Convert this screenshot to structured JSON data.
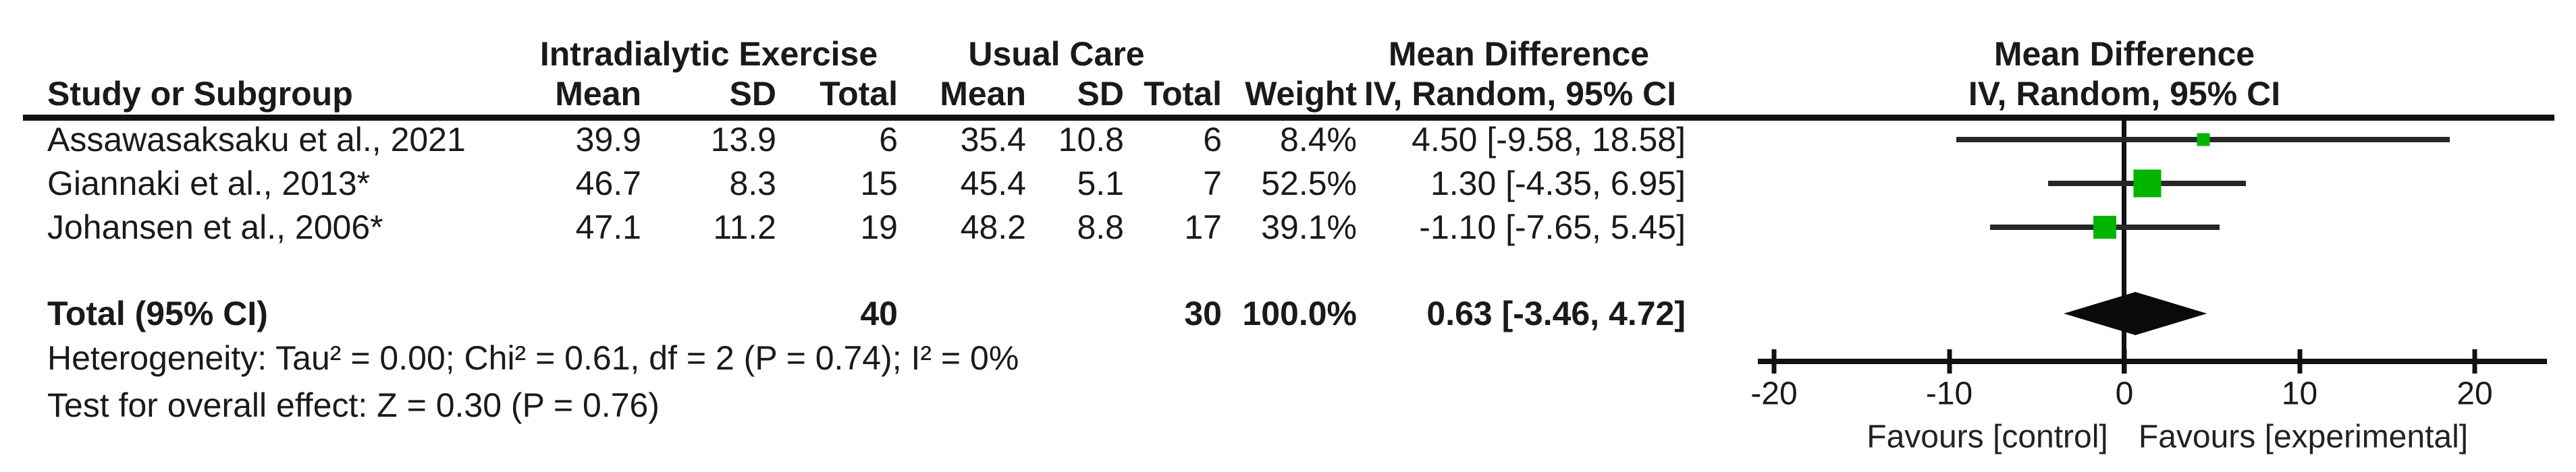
{
  "figure": {
    "colors": {
      "marker_green": "#00b400",
      "line": "#262626",
      "axis": "#111111",
      "text": "#1a1a1a"
    },
    "table": {
      "study_col_header": "Study or Subgroup",
      "group1_header": "Intradialytic Exercise",
      "group2_header": "Usual Care",
      "sub_headers": [
        "Mean",
        "SD",
        "Total",
        "Mean",
        "SD",
        "Total",
        "Weight"
      ],
      "effect_header_line1": "Mean Difference",
      "effect_header_line2": "IV, Random, 95% CI"
    },
    "plot": {
      "header_line1": "Mean Difference",
      "header_line2": "IV, Random, 95% CI",
      "axis_ticks": [
        "-20",
        "-10",
        "0",
        "10",
        "20"
      ],
      "favours_left": "Favours [control]",
      "favours_right": "Favours [experimental]"
    },
    "rows": [
      {
        "study": "Assawasaksaku et al., 2021",
        "mean1": "39.9",
        "sd1": "13.9",
        "total1": "6",
        "mean2": "35.4",
        "sd2": "10.8",
        "total2": "6",
        "weight": "8.4%",
        "ci": "4.50 [-9.58, 18.58]",
        "md": 4.5,
        "lo": -9.58,
        "hi": 18.58,
        "weight_pct": 8.4
      },
      {
        "study": "Giannaki et al., 2013*",
        "mean1": "46.7",
        "sd1": "8.3",
        "total1": "15",
        "mean2": "45.4",
        "sd2": "5.1",
        "total2": "7",
        "weight": "52.5%",
        "ci": "1.30 [-4.35, 6.95]",
        "md": 1.3,
        "lo": -4.35,
        "hi": 6.95,
        "weight_pct": 52.5
      },
      {
        "study": "Johansen et al., 2006*",
        "mean1": "47.1",
        "sd1": "11.2",
        "total1": "19",
        "mean2": "48.2",
        "sd2": "8.8",
        "total2": "17",
        "weight": "39.1%",
        "ci": "-1.10 [-7.65, 5.45]",
        "md": -1.1,
        "lo": -7.65,
        "hi": 5.45,
        "weight_pct": 39.1
      }
    ],
    "total": {
      "label": "Total (95% CI)",
      "total1": "40",
      "total2": "30",
      "weight": "100.0%",
      "ci": "0.63 [-3.46, 4.72]",
      "md": 0.63,
      "lo": -3.46,
      "hi": 4.72
    },
    "footnotes": {
      "heterogeneity": "Heterogeneity: Tau² = 0.00; Chi² = 0.61, df = 2 (P = 0.74); I² = 0%",
      "overall_effect": "Test for overall effect: Z = 0.30 (P = 0.76)"
    }
  },
  "chart_data": {
    "type": "scatter",
    "subtype": "forest_plot_mean_difference",
    "title": "Mean Difference — IV, Random, 95% CI",
    "xlim": [
      -20,
      20
    ],
    "x_ticks": [
      -20,
      -10,
      0,
      10,
      20
    ],
    "xlabel_left": "Favours [control]",
    "xlabel_right": "Favours [experimental]",
    "grid": false,
    "studies": [
      {
        "name": "Assawasaksaku et al., 2021",
        "exercise_mean": 39.9,
        "exercise_sd": 13.9,
        "exercise_total": 6,
        "control_mean": 35.4,
        "control_sd": 10.8,
        "control_total": 6,
        "weight_pct": 8.4,
        "md": 4.5,
        "ci_low": -9.58,
        "ci_high": 18.58
      },
      {
        "name": "Giannaki et al., 2013*",
        "exercise_mean": 46.7,
        "exercise_sd": 8.3,
        "exercise_total": 15,
        "control_mean": 45.4,
        "control_sd": 5.1,
        "control_total": 7,
        "weight_pct": 52.5,
        "md": 1.3,
        "ci_low": -4.35,
        "ci_high": 6.95
      },
      {
        "name": "Johansen et al., 2006*",
        "exercise_mean": 47.1,
        "exercise_sd": 11.2,
        "exercise_total": 19,
        "control_mean": 48.2,
        "control_sd": 8.8,
        "control_total": 17,
        "weight_pct": 39.1,
        "md": -1.1,
        "ci_low": -7.65,
        "ci_high": 5.45
      }
    ],
    "overall": {
      "label": "Total (95% CI)",
      "exercise_total": 40,
      "control_total": 30,
      "weight_pct": 100.0,
      "md": 0.63,
      "ci_low": -3.46,
      "ci_high": 4.72
    },
    "heterogeneity": {
      "tau2": 0.0,
      "chi2": 0.61,
      "df": 2,
      "p": 0.74,
      "i2_pct": 0
    },
    "overall_effect_test": {
      "z": 0.3,
      "p": 0.76
    }
  }
}
